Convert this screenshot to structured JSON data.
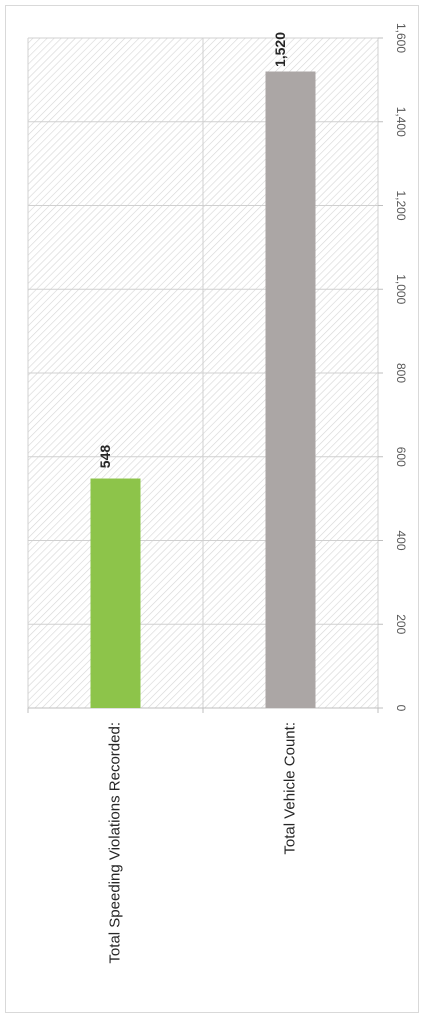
{
  "chart_data": {
    "type": "bar",
    "orientation": "horizontal",
    "rotation": "rotated 90 degrees clockwise",
    "categories": [
      "Total Speeding Violations Recorded:",
      "Total Vehicle Count:"
    ],
    "values": [
      548,
      1520
    ],
    "data_labels": [
      "548",
      "1,520"
    ],
    "bar_colors": [
      "#8dc44a",
      "#aba6a5"
    ],
    "xlim": [
      0,
      1600
    ],
    "tick_values": [
      0,
      200,
      400,
      600,
      800,
      1000,
      1200,
      1400,
      1600
    ],
    "tick_labels": [
      "0",
      "200",
      "400",
      "600",
      "800",
      "1,000",
      "1,200",
      "1,400",
      "1,600"
    ],
    "grid": true,
    "plot_area_fill": "diagonal hatch",
    "legend": "none"
  }
}
